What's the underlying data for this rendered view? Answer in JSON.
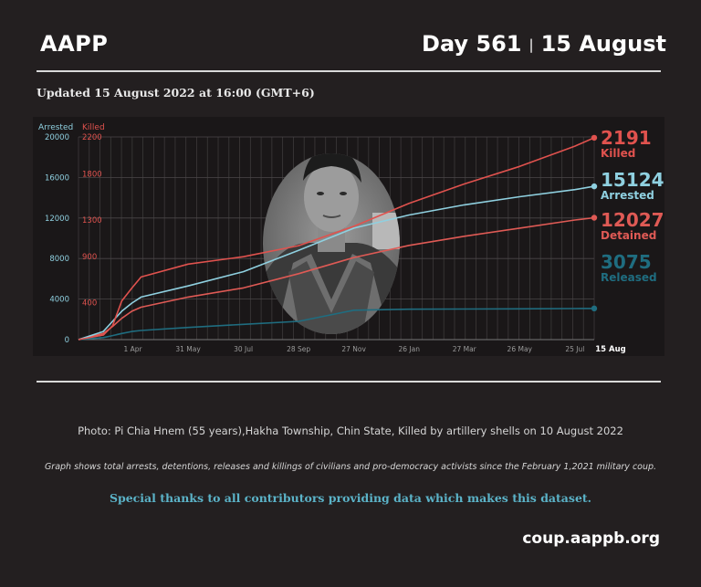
{
  "header": {
    "brand": "AAPP",
    "day_label": "Day 561",
    "separator": "|",
    "date_label": "15 August"
  },
  "updated": "Updated 15 August 2022 at 16:00 (GMT+6)",
  "colors": {
    "killed": "#e0524e",
    "arrested": "#8fd0e0",
    "detained": "#df5a55",
    "released": "#1f6d80",
    "background": "#231f20"
  },
  "photo": {
    "icon": "portrait-photo",
    "caption": "Photo: Pi Chia Hnem (55 years),Hakha Township, Chin State, Killed by artillery shells  on 10 August 2022"
  },
  "graph_caption": "Graph shows total arrests, detentions, releases and killings of civilians and pro-democracy activists since the February 1,2021 military coup.",
  "thanks": "Special thanks to all contributors providing data which makes this dataset.",
  "website": "coup.aappb.org",
  "chart_data": {
    "type": "line",
    "x_tick_labels": [
      "1 Apr",
      "31 May",
      "30 Jul",
      "28 Sep",
      "27 Nov",
      "26 Jan",
      "27 Mar",
      "26 May",
      "25 Jul",
      "15 Aug"
    ],
    "x_range": [
      "2021-02-01",
      "2022-08-15"
    ],
    "left_axis": {
      "label": "Arrested",
      "ticks": [
        0,
        4000,
        8000,
        12000,
        16000,
        20000
      ],
      "ylim": [
        0,
        20000
      ]
    },
    "right_axis": {
      "label": "Killed",
      "ticks": [
        400,
        900,
        1300,
        1800,
        2200
      ],
      "ylim": [
        0,
        2200
      ]
    },
    "grid": true,
    "series": [
      {
        "name": "Killed",
        "axis": "right",
        "color": "#e0524e",
        "final_value": 2191,
        "x": [
          "2021-02-01",
          "2021-02-28",
          "2021-03-10",
          "2021-03-20",
          "2021-03-31",
          "2021-04-10",
          "2021-05-31",
          "2021-07-30",
          "2021-09-28",
          "2021-11-27",
          "2022-01-26",
          "2022-03-27",
          "2022-05-26",
          "2022-07-25",
          "2022-08-15"
        ],
        "values": [
          0,
          50,
          150,
          420,
          560,
          680,
          820,
          900,
          1020,
          1230,
          1480,
          1690,
          1880,
          2100,
          2191
        ]
      },
      {
        "name": "Arrested",
        "axis": "left",
        "color": "#8fd0e0",
        "final_value": 15124,
        "x": [
          "2021-02-01",
          "2021-02-28",
          "2021-03-10",
          "2021-03-20",
          "2021-03-31",
          "2021-04-10",
          "2021-05-31",
          "2021-07-30",
          "2021-09-28",
          "2021-11-27",
          "2022-01-26",
          "2022-03-27",
          "2022-05-26",
          "2022-07-25",
          "2022-08-15"
        ],
        "values": [
          0,
          800,
          1800,
          2800,
          3600,
          4200,
          5300,
          6700,
          8800,
          11000,
          12300,
          13300,
          14100,
          14800,
          15124
        ]
      },
      {
        "name": "Detained",
        "axis": "left",
        "color": "#df5a55",
        "final_value": 12027,
        "x": [
          "2021-02-01",
          "2021-02-28",
          "2021-03-10",
          "2021-03-20",
          "2021-03-31",
          "2021-04-10",
          "2021-05-31",
          "2021-07-30",
          "2021-09-28",
          "2021-11-27",
          "2022-01-26",
          "2022-03-27",
          "2022-05-26",
          "2022-07-25",
          "2022-08-15"
        ],
        "values": [
          0,
          600,
          1300,
          2100,
          2800,
          3200,
          4200,
          5100,
          6500,
          8100,
          9300,
          10200,
          11000,
          11800,
          12027
        ]
      },
      {
        "name": "Released",
        "axis": "left",
        "color": "#1f6d80",
        "final_value": 3075,
        "x": [
          "2021-02-01",
          "2021-02-28",
          "2021-03-10",
          "2021-03-20",
          "2021-03-31",
          "2021-04-10",
          "2021-05-31",
          "2021-07-30",
          "2021-09-28",
          "2021-11-27",
          "2022-01-26",
          "2022-03-27",
          "2022-05-26",
          "2022-07-25",
          "2022-08-15"
        ],
        "values": [
          0,
          200,
          400,
          600,
          800,
          900,
          1200,
          1500,
          1800,
          2900,
          3000,
          3020,
          3040,
          3060,
          3075
        ]
      }
    ]
  }
}
